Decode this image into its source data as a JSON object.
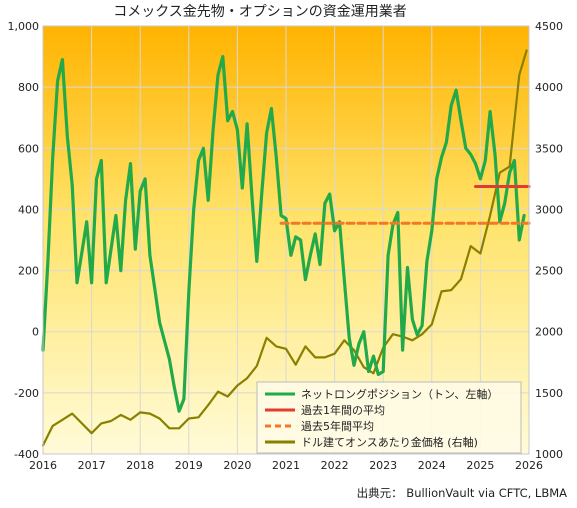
{
  "chart_data": {
    "type": "line",
    "title": "コメックス金先物・オプションの資金運用業者",
    "source": "出典元： BullionVault via CFTC, LBMA",
    "x_ticks": [
      "2016",
      "2017",
      "2018",
      "2019",
      "2020",
      "2021",
      "2022",
      "2023",
      "2024",
      "2025",
      "2026"
    ],
    "xlim": [
      2016,
      2026
    ],
    "y_left": {
      "ticks": [
        "-400",
        "-200",
        "0",
        "200",
        "400",
        "600",
        "800",
        "1,000"
      ],
      "ylim": [
        -400,
        1000
      ]
    },
    "y_right": {
      "ticks": [
        "1000",
        "1500",
        "2000",
        "2500",
        "3000",
        "3500",
        "4000",
        "4500"
      ],
      "ylim": [
        1000,
        4500
      ]
    },
    "grid": true,
    "legend_position": "bottom-right",
    "series": [
      {
        "name": "ネットロングポジション（トン、左軸）",
        "axis": "left",
        "color": "#22aa4a",
        "x": [
          2016.0,
          2016.1,
          2016.2,
          2016.3,
          2016.4,
          2016.5,
          2016.6,
          2016.7,
          2016.8,
          2016.9,
          2017.0,
          2017.1,
          2017.2,
          2017.3,
          2017.5,
          2017.6,
          2017.7,
          2017.8,
          2017.9,
          2018.0,
          2018.1,
          2018.2,
          2018.3,
          2018.4,
          2018.5,
          2018.6,
          2018.7,
          2018.8,
          2018.9,
          2019.0,
          2019.1,
          2019.2,
          2019.3,
          2019.4,
          2019.5,
          2019.6,
          2019.7,
          2019.8,
          2019.9,
          2020.0,
          2020.1,
          2020.2,
          2020.3,
          2020.4,
          2020.5,
          2020.6,
          2020.7,
          2020.8,
          2020.9,
          2021.0,
          2021.1,
          2021.2,
          2021.3,
          2021.4,
          2021.5,
          2021.6,
          2021.7,
          2021.8,
          2021.9,
          2022.0,
          2022.1,
          2022.2,
          2022.3,
          2022.4,
          2022.5,
          2022.6,
          2022.7,
          2022.8,
          2022.9,
          2023.0,
          2023.1,
          2023.2,
          2023.3,
          2023.4,
          2023.5,
          2023.6,
          2023.7,
          2023.8,
          2023.9,
          2024.0,
          2024.1,
          2024.2,
          2024.3,
          2024.4,
          2024.5,
          2024.6,
          2024.7,
          2024.8,
          2024.9,
          2025.0,
          2025.1,
          2025.2,
          2025.3,
          2025.4,
          2025.5,
          2025.6,
          2025.7,
          2025.8,
          2025.9
        ],
        "values": [
          -60,
          230,
          570,
          820,
          890,
          640,
          480,
          160,
          260,
          360,
          160,
          500,
          560,
          160,
          380,
          200,
          430,
          550,
          270,
          460,
          500,
          250,
          140,
          30,
          -30,
          -90,
          -180,
          -260,
          -220,
          130,
          400,
          560,
          600,
          430,
          660,
          840,
          900,
          690,
          720,
          660,
          470,
          680,
          440,
          230,
          450,
          650,
          730,
          570,
          380,
          370,
          250,
          310,
          300,
          170,
          250,
          320,
          220,
          420,
          450,
          330,
          360,
          170,
          -20,
          -110,
          -40,
          0,
          -130,
          -80,
          -140,
          -130,
          250,
          350,
          390,
          -60,
          210,
          40,
          -10,
          20,
          230,
          330,
          500,
          570,
          620,
          740,
          790,
          690,
          600,
          580,
          550,
          500,
          560,
          720,
          580,
          360,
          420,
          520,
          560,
          300,
          380
        ]
      },
      {
        "name": "過去1年間の平均",
        "axis": "left",
        "color": "#e03c31",
        "style": "solid",
        "x": [
          2024.9,
          2026.0
        ],
        "values": [
          475,
          475
        ]
      },
      {
        "name": "過去5年間平均",
        "axis": "left",
        "color": "#f07828",
        "style": "dashed",
        "x": [
          2020.9,
          2026.0
        ],
        "values": [
          355,
          355
        ]
      },
      {
        "name": "ドル建てオンスあたり金価格 (右軸)",
        "axis": "right",
        "color": "#8a8000",
        "x": [
          2016.0,
          2016.2,
          2016.4,
          2016.6,
          2016.8,
          2017.0,
          2017.2,
          2017.4,
          2017.6,
          2017.8,
          2018.0,
          2018.2,
          2018.4,
          2018.6,
          2018.8,
          2019.0,
          2019.2,
          2019.4,
          2019.6,
          2019.8,
          2020.0,
          2020.2,
          2020.4,
          2020.6,
          2020.8,
          2021.0,
          2021.2,
          2021.4,
          2021.6,
          2021.8,
          2022.0,
          2022.2,
          2022.4,
          2022.6,
          2022.8,
          2023.0,
          2023.2,
          2023.4,
          2023.6,
          2023.8,
          2024.0,
          2024.2,
          2024.4,
          2024.6,
          2024.8,
          2025.0,
          2025.2,
          2025.4,
          2025.6,
          2025.8,
          2025.95
        ],
        "values": [
          1070,
          1230,
          1280,
          1330,
          1250,
          1170,
          1250,
          1270,
          1320,
          1280,
          1340,
          1330,
          1290,
          1210,
          1210,
          1290,
          1300,
          1400,
          1510,
          1470,
          1560,
          1620,
          1720,
          1950,
          1880,
          1860,
          1730,
          1880,
          1790,
          1790,
          1820,
          1930,
          1850,
          1710,
          1660,
          1870,
          1980,
          1960,
          1930,
          1980,
          2060,
          2330,
          2340,
          2430,
          2700,
          2640,
          2950,
          3300,
          3350,
          4100,
          4300
        ]
      }
    ],
    "legend": [
      {
        "label": "ネットロングポジション（トン、左軸）",
        "color": "#22aa4a",
        "style": "solid"
      },
      {
        "label": "過去1年間の平均",
        "color": "#e03c31",
        "style": "solid"
      },
      {
        "label": "過去5年間平均",
        "color": "#f07828",
        "style": "dashed"
      },
      {
        "label": "ドル建てオンスあたり金価格 (右軸)",
        "color": "#8a8000",
        "style": "solid"
      }
    ]
  }
}
